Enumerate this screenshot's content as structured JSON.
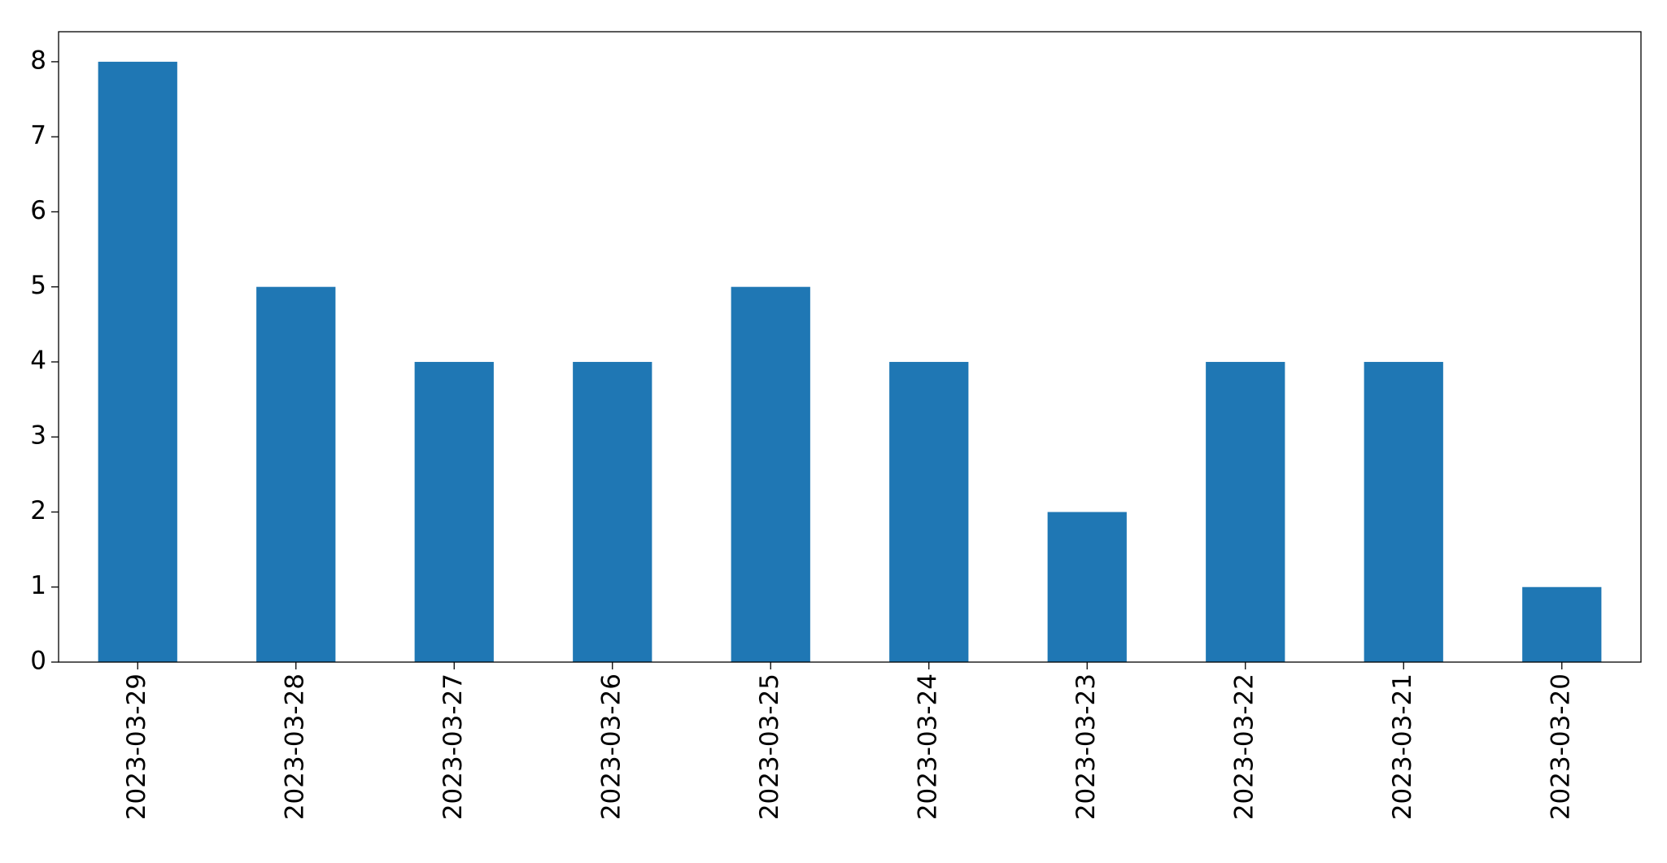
{
  "chart_data": {
    "type": "bar",
    "categories": [
      "2023-03-29",
      "2023-03-28",
      "2023-03-27",
      "2023-03-26",
      "2023-03-25",
      "2023-03-24",
      "2023-03-23",
      "2023-03-22",
      "2023-03-21",
      "2023-03-20"
    ],
    "values": [
      8,
      5,
      4,
      4,
      5,
      4,
      2,
      4,
      4,
      1
    ],
    "color": "#1f77b4",
    "ylim": [
      0,
      8.4
    ],
    "yticks": [
      0,
      1,
      2,
      3,
      4,
      5,
      6,
      7,
      8
    ],
    "grid": false
  }
}
